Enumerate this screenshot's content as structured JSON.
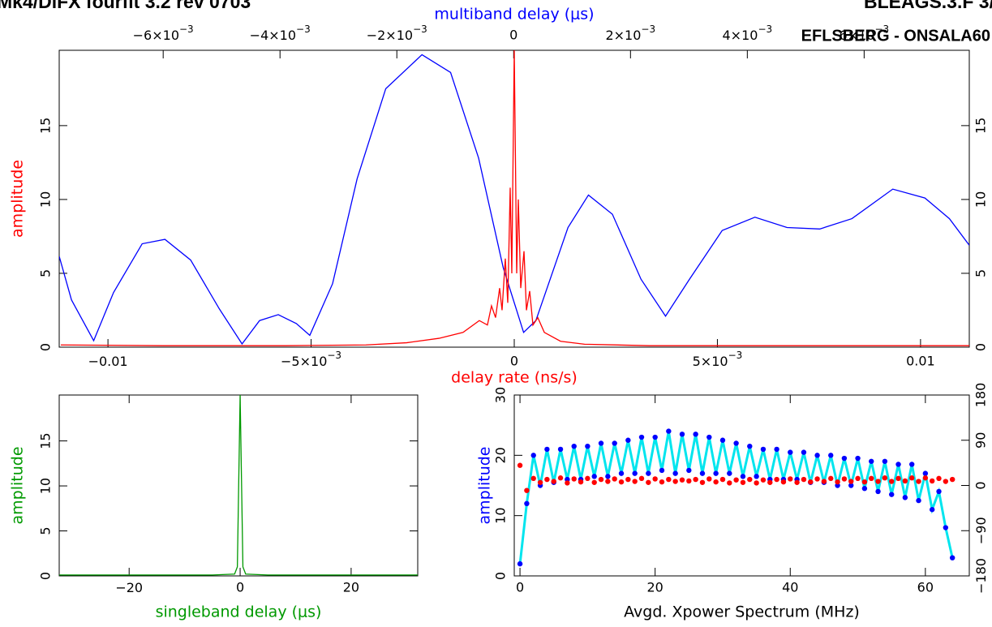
{
  "chart_data": [
    {
      "type": "line",
      "title": "Mk4/DiFX fourfit 3.2 rev 0703",
      "title_right": "BLEAGS.3.F 3/",
      "subtitle": "EFLSBERG - ONSALA60",
      "xlabel": "delay rate (ns/s)",
      "xlabel_color": "#ff0000",
      "x2label": "multiband delay (μs)",
      "x2label_color": "#0000ff",
      "ylabel": "amplitude",
      "ylabel_color": "#ff0000",
      "xlim": [
        -0.0112,
        0.0112
      ],
      "xticks": [
        {
          "value": -0.01,
          "label": "−0.01"
        },
        {
          "value": -0.005,
          "label": "−5×10",
          "exponent": "−3"
        },
        0,
        {
          "value": 0.005,
          "label": "5×10",
          "exponent": "−3"
        },
        0.01
      ],
      "x2lim": [
        -0.00778,
        0.0078
      ],
      "x2ticks": [
        {
          "value": -0.006,
          "label": "−6×10",
          "exponent": "−3"
        },
        {
          "value": -0.004,
          "label": "−4×10",
          "exponent": "−3"
        },
        {
          "value": -0.002,
          "label": "−2×10",
          "exponent": "−3"
        },
        0,
        {
          "value": 0.002,
          "label": "2×10",
          "exponent": "−3"
        },
        {
          "value": 0.004,
          "label": "4×10",
          "exponent": "−3"
        },
        {
          "value": 0.006,
          "label": "6×10",
          "exponent": "−3"
        }
      ],
      "ylim": [
        0,
        20.1
      ],
      "yticks": [
        0,
        5,
        10,
        15
      ],
      "ymirror": true,
      "series": [
        {
          "color": "#0000ff",
          "axis": "x2",
          "x": [
            -0.00778,
            -0.00757,
            -0.00719,
            -0.00685,
            -0.00636,
            -0.00597,
            -0.00553,
            -0.00504,
            -0.00465,
            -0.00435,
            -0.00403,
            -0.00372,
            -0.00349,
            -0.0031,
            -0.00268,
            -0.00219,
            -0.00157,
            -0.00108,
            -0.0006,
            -0.00018,
            0.00017,
            0.00038,
            0.00093,
            0.00128,
            0.00169,
            0.00218,
            0.0026,
            0.00301,
            0.00357,
            0.00413,
            0.00468,
            0.00524,
            0.00579,
            0.00649,
            0.00704,
            0.00746,
            0.0078
          ],
          "values": [
            6.15,
            3.2,
            0.44,
            3.7,
            7.0,
            7.3,
            5.9,
            2.6,
            0.22,
            1.8,
            2.2,
            1.6,
            0.8,
            4.3,
            11.4,
            17.5,
            19.8,
            18.6,
            12.8,
            5.4,
            1.0,
            1.8,
            8.1,
            10.3,
            9.0,
            4.6,
            2.1,
            4.6,
            7.9,
            8.8,
            8.1,
            8.0,
            8.7,
            10.7,
            10.1,
            8.7,
            6.9
          ]
        },
        {
          "color": "#ff0000",
          "x": [
            -0.01116,
            -0.00863,
            -0.00564,
            -0.00365,
            -0.00265,
            -0.00185,
            -0.00126,
            -0.00086,
            -0.00066,
            -0.00056,
            -0.00046,
            -0.00036,
            -0.0003,
            -0.00022,
            -0.00016,
            -0.0001,
            -6e-05,
            0,
            6e-05,
            0.0001,
            0.00016,
            0.00024,
            0.0003,
            0.00038,
            0.00046,
            0.00058,
            0.00074,
            0.00114,
            0.00173,
            0.00333,
            0.00731,
            0.0112
          ],
          "values": [
            0.15,
            0.1,
            0.1,
            0.15,
            0.3,
            0.6,
            1.0,
            1.8,
            1.5,
            2.8,
            2.0,
            4.0,
            2.5,
            6.0,
            3.0,
            10.8,
            5,
            20.1,
            5,
            10.0,
            4,
            6.5,
            2.5,
            3.8,
            1.5,
            2.0,
            1.0,
            0.4,
            0.2,
            0.1,
            0.1,
            0.1
          ]
        }
      ]
    },
    {
      "type": "line",
      "xlabel": "singleband delay (μs)",
      "xlabel_color": "#009900",
      "ylabel": "amplitude",
      "ylabel_color": "#009900",
      "xlim": [
        -32.6,
        32
      ],
      "xticks": [
        {
          "value": -20,
          "label": "−20"
        },
        0,
        20
      ],
      "ylim": [
        0,
        20.1
      ],
      "yticks": [
        0,
        5,
        10,
        15
      ],
      "series": [
        {
          "color": "#009900",
          "x": [
            -32.6,
            -5,
            -1,
            -0.5,
            0,
            0.5,
            1,
            5,
            32
          ],
          "values": [
            0.1,
            0.1,
            0.2,
            1,
            20.1,
            1,
            0.2,
            0.1,
            0.1
          ]
        }
      ]
    },
    {
      "type": "scatter",
      "xlabel": "Avgd. Xpower Spectrum (MHz)",
      "xlabel_color": "#000000",
      "ylabel": "amplitude",
      "ylabel_color": "#0000ff",
      "xlim": [
        -0.85,
        66.5
      ],
      "xticks": [
        0,
        20,
        40,
        60
      ],
      "ylim": [
        0,
        30
      ],
      "yticks": [
        0,
        10,
        20,
        30
      ],
      "y2lim": [
        -180,
        180
      ],
      "y2ticks": [
        {
          "value": -180,
          "label": "−180"
        },
        {
          "value": -90,
          "label": "−90"
        },
        0,
        90,
        180
      ],
      "series": [
        {
          "color": "#0000ff",
          "line_color": "#00e5ee",
          "x": [
            0,
            1,
            2,
            3,
            4,
            5,
            6,
            7,
            8,
            9,
            10,
            11,
            12,
            13,
            14,
            15,
            16,
            17,
            18,
            19,
            20,
            21,
            22,
            23,
            24,
            25,
            26,
            27,
            28,
            29,
            30,
            31,
            32,
            33,
            34,
            35,
            36,
            37,
            38,
            39,
            40,
            41,
            42,
            43,
            44,
            45,
            46,
            47,
            48,
            49,
            50,
            51,
            52,
            53,
            54,
            55,
            56,
            57,
            58,
            59,
            60,
            61,
            62,
            63,
            64
          ],
          "values": [
            2,
            12,
            20,
            15,
            21,
            15.5,
            21,
            16,
            21.5,
            16,
            21.5,
            16.5,
            22,
            16.5,
            22,
            17,
            22.5,
            17,
            23,
            17,
            23,
            17.5,
            24,
            17,
            23.5,
            17.5,
            23.5,
            17,
            23,
            17,
            22.5,
            17,
            22,
            16.5,
            21.5,
            16.5,
            21,
            16,
            21,
            16,
            20.5,
            16,
            20.5,
            15.5,
            20,
            15.5,
            20,
            15,
            19.5,
            15,
            19.5,
            14.5,
            19,
            14,
            19,
            13.5,
            18.5,
            13,
            18.5,
            12.5,
            17,
            11,
            14,
            8,
            3
          ]
        },
        {
          "color": "#ff0000",
          "axis": "y2",
          "x": [
            0,
            1,
            2,
            3,
            4,
            5,
            6,
            7,
            8,
            9,
            10,
            11,
            12,
            13,
            14,
            15,
            16,
            17,
            18,
            19,
            20,
            21,
            22,
            23,
            24,
            25,
            26,
            27,
            28,
            29,
            30,
            31,
            32,
            33,
            34,
            35,
            36,
            37,
            38,
            39,
            40,
            41,
            42,
            43,
            44,
            45,
            46,
            47,
            48,
            49,
            50,
            51,
            52,
            53,
            54,
            55,
            56,
            57,
            58,
            59,
            60,
            61,
            62,
            63,
            64
          ],
          "values": [
            40,
            -10,
            14,
            6,
            12,
            8,
            15,
            5,
            13,
            7,
            14,
            6,
            12,
            8,
            13,
            7,
            12,
            8,
            14,
            6,
            13,
            7,
            12,
            8,
            11,
            9,
            12,
            6,
            13,
            7,
            12,
            5,
            11,
            6,
            12,
            5,
            11,
            6,
            12,
            7,
            13,
            6,
            12,
            7,
            13,
            8,
            14,
            7,
            13,
            8,
            14,
            7,
            14,
            8,
            15,
            8,
            14,
            9,
            15,
            8,
            15,
            9,
            14,
            8,
            12
          ]
        }
      ]
    }
  ]
}
